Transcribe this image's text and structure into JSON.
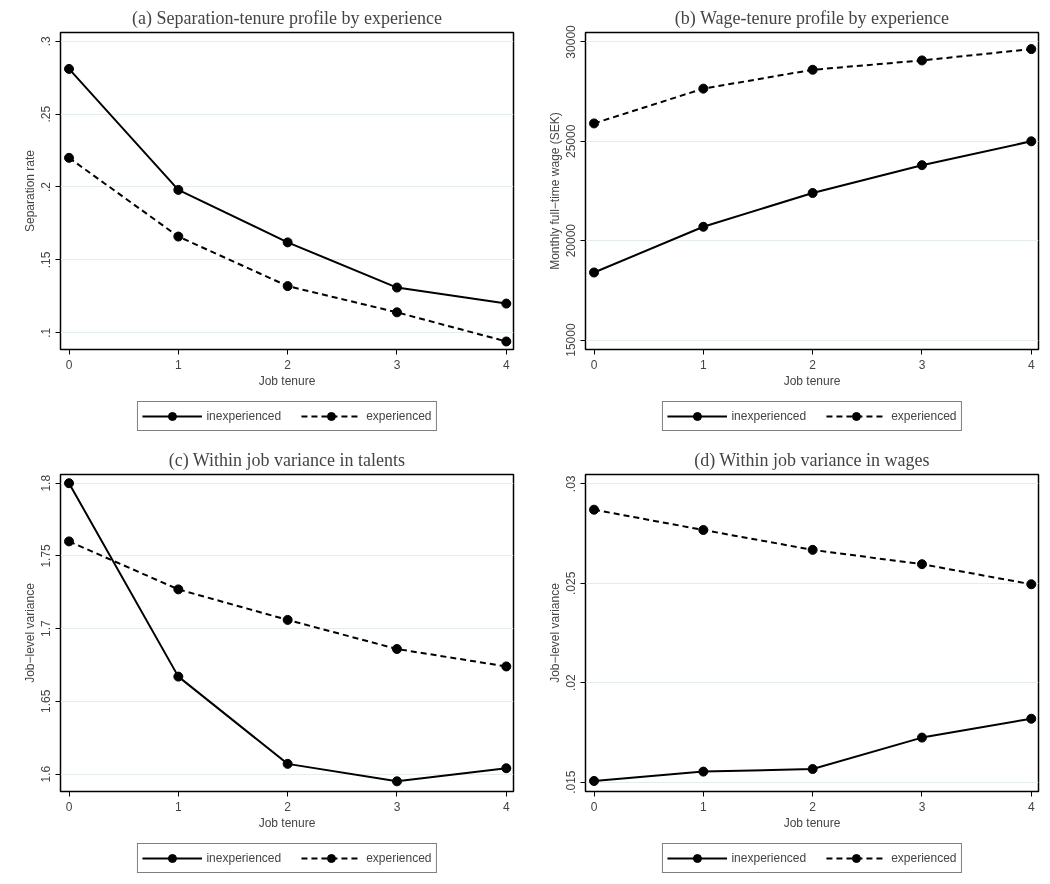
{
  "chart_data": [
    {
      "type": "line",
      "title": "(a) Separation-tenure profile by experience",
      "xlabel": "Job tenure",
      "ylabel": "Separation rate",
      "x": [
        0,
        1,
        2,
        3,
        4
      ],
      "xlim": [
        -0.078,
        4.066
      ],
      "xticks": [
        0,
        1,
        2,
        3,
        4
      ],
      "ylim": [
        0.0885,
        0.306
      ],
      "yticks": [
        {
          "value": 0.1,
          "label": ".1"
        },
        {
          "value": 0.15,
          "label": ".15"
        },
        {
          "value": 0.2,
          "label": ".2"
        },
        {
          "value": 0.25,
          "label": ".25"
        },
        {
          "value": 0.3,
          "label": ".3"
        }
      ],
      "grid": "y",
      "legend": "bottom",
      "marker": "circle",
      "series": [
        {
          "name": "inexperienced",
          "color": "#000000",
          "line_style": "solid",
          "values": [
            0.281,
            0.198,
            0.162,
            0.131,
            0.12
          ]
        },
        {
          "name": "experienced",
          "color": "#000000",
          "line_style": "dashed",
          "values": [
            0.22,
            0.166,
            0.132,
            0.114,
            0.094
          ]
        }
      ]
    },
    {
      "type": "line",
      "title": "(b) Wage-tenure profile by experience",
      "xlabel": "Job tenure",
      "ylabel": "Monthly full−time wage (SEK)",
      "x": [
        0,
        1,
        2,
        3,
        4
      ],
      "xlim": [
        -0.078,
        4.066
      ],
      "xticks": [
        0,
        1,
        2,
        3,
        4
      ],
      "ylim": [
        14525,
        30475
      ],
      "yticks": [
        15000,
        20000,
        25000,
        30000
      ],
      "grid": "y",
      "legend": "bottom",
      "marker": "circle",
      "series": [
        {
          "name": "inexperienced",
          "color": "#000000",
          "line_style": "solid",
          "values": [
            18400,
            20700,
            22400,
            23800,
            25000
          ]
        },
        {
          "name": "experienced",
          "color": "#000000",
          "line_style": "dashed",
          "values": [
            25900,
            27650,
            28600,
            29070,
            29640
          ]
        }
      ]
    },
    {
      "type": "line",
      "title": "(c) Within job variance in talents",
      "xlabel": "Job tenure",
      "ylabel": "Job−level variance",
      "x": [
        0,
        1,
        2,
        3,
        4
      ],
      "xlim": [
        -0.078,
        4.066
      ],
      "xticks": [
        0,
        1,
        2,
        3,
        4
      ],
      "ylim": [
        1.588,
        1.806
      ],
      "yticks": [
        1.6,
        1.65,
        1.7,
        1.75,
        1.8
      ],
      "grid": "y",
      "legend": "bottom",
      "marker": "circle",
      "series": [
        {
          "name": "inexperienced",
          "color": "#000000",
          "line_style": "solid",
          "values": [
            1.8,
            1.667,
            1.607,
            1.595,
            1.604
          ]
        },
        {
          "name": "experienced",
          "color": "#000000",
          "line_style": "dashed",
          "values": [
            1.76,
            1.727,
            1.706,
            1.686,
            1.674
          ]
        }
      ]
    },
    {
      "type": "line",
      "title": "(d) Within job variance in wages",
      "xlabel": "Job tenure",
      "ylabel": "Job−level variance",
      "x": [
        0,
        1,
        2,
        3,
        4
      ],
      "xlim": [
        -0.078,
        4.066
      ],
      "xticks": [
        0,
        1,
        2,
        3,
        4
      ],
      "ylim": [
        0.01453,
        0.03047
      ],
      "yticks": [
        {
          "value": 0.015,
          "label": ".015"
        },
        {
          "value": 0.02,
          "label": ".02"
        },
        {
          "value": 0.025,
          "label": ".025"
        },
        {
          "value": 0.03,
          "label": ".03"
        }
      ],
      "grid": "y",
      "legend": "bottom",
      "marker": "circle",
      "series": [
        {
          "name": "inexperienced",
          "color": "#000000",
          "line_style": "solid",
          "values": [
            0.01506,
            0.01553,
            0.01566,
            0.01724,
            0.01819
          ]
        },
        {
          "name": "experienced",
          "color": "#000000",
          "line_style": "dashed",
          "values": [
            0.0287,
            0.02768,
            0.02668,
            0.02596,
            0.02495
          ]
        }
      ]
    }
  ]
}
